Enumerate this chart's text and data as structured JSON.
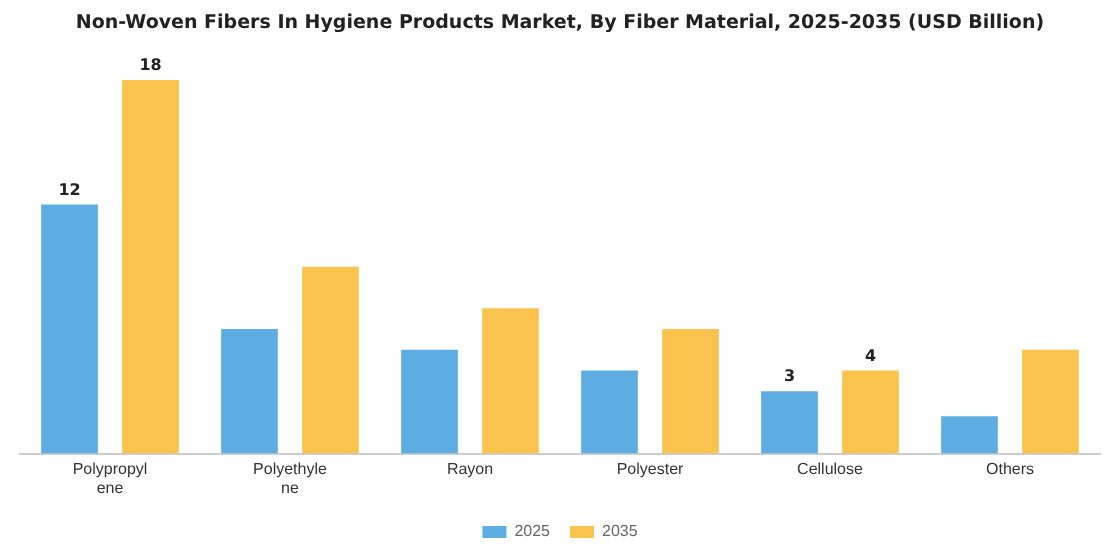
{
  "chart_data": {
    "type": "bar",
    "title": "Non-Woven Fibers In Hygiene Products Market, By Fiber Material, 2025-2035 (USD Billion)",
    "categories": [
      "Polypropylene",
      "Polyethylene",
      "Rayon",
      "Polyester",
      "Cellulose",
      "Others"
    ],
    "series": [
      {
        "name": "2025",
        "color": "#5dade2",
        "values": [
          12,
          6,
          5,
          4,
          3,
          1.8
        ],
        "value_labels": [
          "12",
          null,
          null,
          null,
          "3",
          null
        ]
      },
      {
        "name": "2035",
        "color": "#f9c34d",
        "values": [
          18,
          9,
          7,
          6,
          4,
          5
        ],
        "value_labels": [
          "18",
          null,
          null,
          null,
          "4",
          null
        ]
      }
    ],
    "grid": false,
    "legend": "bottom"
  }
}
